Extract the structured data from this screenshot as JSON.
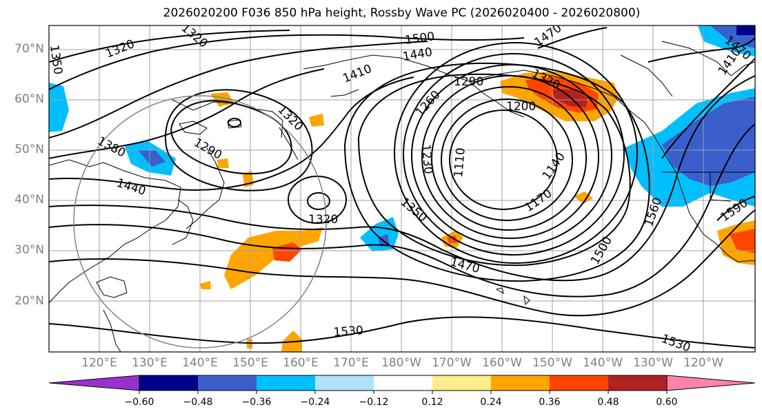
{
  "title": "2026020200 F036 850 hPa height, Rossby Wave PC (2026020400 - 2026020800)",
  "map": {
    "lat_labels": [
      "70°N",
      "60°N",
      "50°N",
      "40°N",
      "30°N",
      "20°N"
    ],
    "lon_labels": [
      "120°E",
      "130°E",
      "140°E",
      "150°E",
      "160°E",
      "170°E",
      "180°W",
      "170°W",
      "160°W",
      "150°W",
      "140°W",
      "130°W",
      "120°W"
    ],
    "contour_labels": [
      "1500",
      "1470",
      "1440",
      "1410",
      "1380",
      "1350",
      "1320",
      "1320",
      "1320",
      "1320",
      "1290",
      "1290",
      "1260",
      "1230",
      "1200",
      "1170",
      "1140",
      "1110",
      "1350",
      "1470",
      "1500",
      "1530",
      "1530",
      "1560",
      "1590",
      "1440",
      "1470",
      "1410",
      "1320"
    ]
  },
  "colorbar": {
    "ticks": [
      "−0.60",
      "−0.48",
      "−0.36",
      "−0.24",
      "−0.12",
      "0.12",
      "0.24",
      "0.36",
      "0.48",
      "0.60"
    ],
    "colors": [
      "#9932cc",
      "#00008b",
      "#3a5fcd",
      "#00bfff",
      "#b0e2ff",
      "#ffffff",
      "#ffec8b",
      "#ffa500",
      "#ff4500",
      "#b22222",
      "#ff82ab"
    ]
  }
}
